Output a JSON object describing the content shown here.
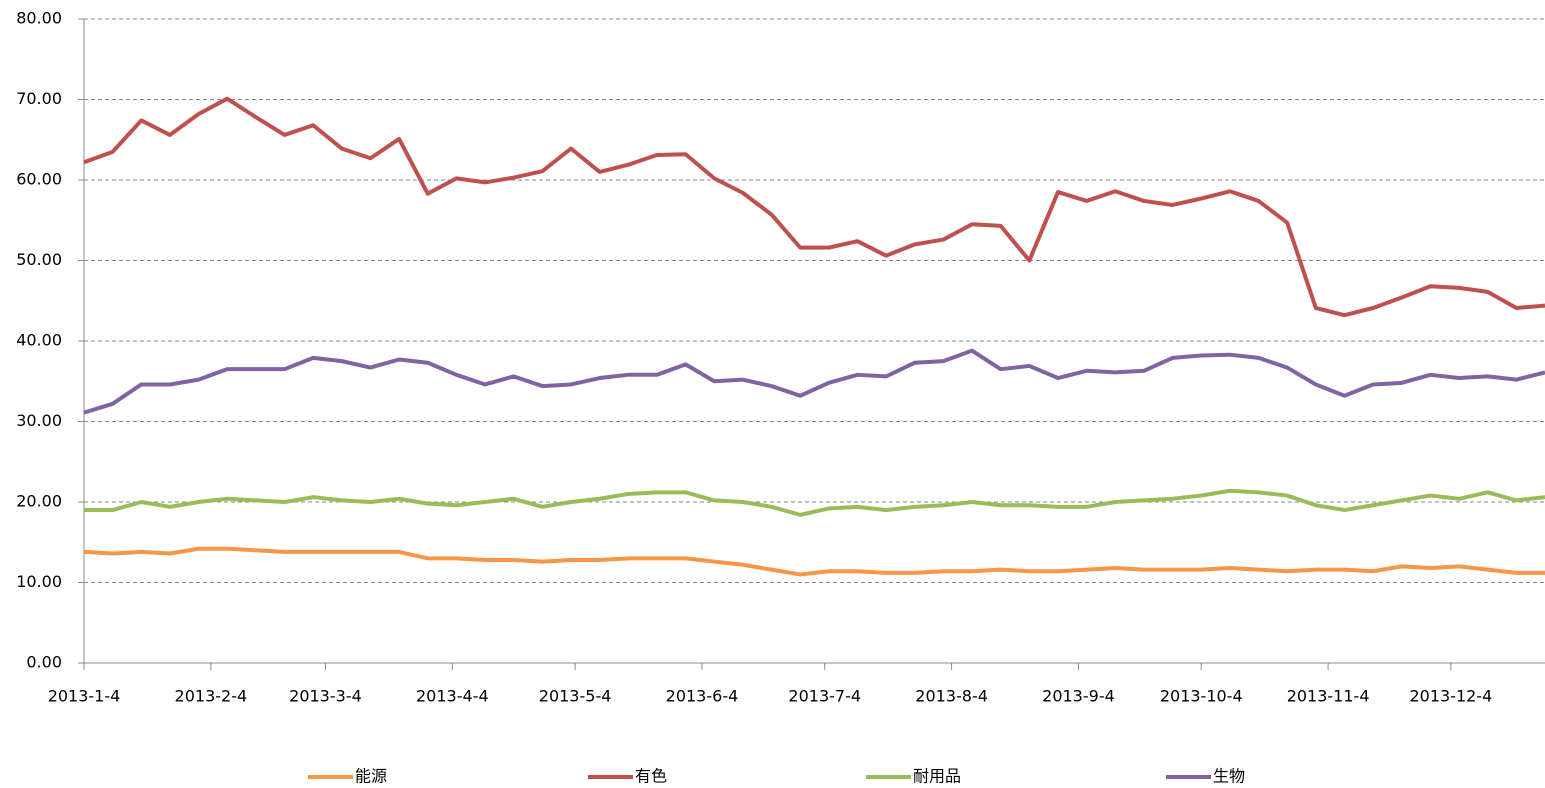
{
  "chart_data": {
    "type": "line",
    "x": [
      "2013-1-4",
      "2013-1-11",
      "2013-1-18",
      "2013-1-25",
      "2013-2-1",
      "2013-2-8",
      "2013-2-15",
      "2013-2-22",
      "2013-3-1",
      "2013-3-8",
      "2013-3-15",
      "2013-3-22",
      "2013-3-29",
      "2013-4-5",
      "2013-4-12",
      "2013-4-19",
      "2013-4-26",
      "2013-5-3",
      "2013-5-10",
      "2013-5-17",
      "2013-5-24",
      "2013-5-31",
      "2013-6-7",
      "2013-6-14",
      "2013-6-21",
      "2013-6-28",
      "2013-7-5",
      "2013-7-12",
      "2013-7-19",
      "2013-7-26",
      "2013-8-2",
      "2013-8-9",
      "2013-8-16",
      "2013-8-23",
      "2013-8-30",
      "2013-9-6",
      "2013-9-13",
      "2013-9-20",
      "2013-9-27",
      "2013-10-4",
      "2013-10-11",
      "2013-10-18",
      "2013-10-25",
      "2013-11-1",
      "2013-11-8",
      "2013-11-15",
      "2013-11-22",
      "2013-11-29",
      "2013-12-6",
      "2013-12-13",
      "2013-12-20",
      "2013-12-27"
    ],
    "xlim": [
      "2013-1-4",
      "2013-12-27"
    ],
    "xticks": [
      "2013-1-4",
      "2013-2-4",
      "2013-3-4",
      "2013-4-4",
      "2013-5-4",
      "2013-6-4",
      "2013-7-4",
      "2013-8-4",
      "2013-9-4",
      "2013-10-4",
      "2013-11-4",
      "2013-12-4"
    ],
    "ylim": [
      0,
      80
    ],
    "yticks": [
      {
        "value": 0,
        "label": "0.00"
      },
      {
        "value": 10,
        "label": "10.00"
      },
      {
        "value": 20,
        "label": "20.00"
      },
      {
        "value": 30,
        "label": "30.00"
      },
      {
        "value": 40,
        "label": "40.00"
      },
      {
        "value": 50,
        "label": "50.00"
      },
      {
        "value": 60,
        "label": "60.00"
      },
      {
        "value": 70,
        "label": "70.00"
      },
      {
        "value": 80,
        "label": "80.00"
      }
    ],
    "grid": true,
    "legend": "bottom",
    "series": [
      {
        "name": "能源",
        "color": "#f79646",
        "values": [
          13.8,
          13.6,
          13.8,
          13.6,
          14.2,
          14.2,
          14.0,
          13.8,
          13.8,
          13.8,
          13.8,
          13.8,
          13.0,
          13.0,
          12.8,
          12.8,
          12.6,
          12.8,
          12.8,
          13.0,
          13.0,
          13.0,
          12.6,
          12.2,
          11.6,
          11.0,
          11.4,
          11.4,
          11.2,
          11.2,
          11.4,
          11.4,
          11.6,
          11.4,
          11.4,
          11.6,
          11.8,
          11.6,
          11.6,
          11.6,
          11.8,
          11.6,
          11.4,
          11.6,
          11.6,
          11.4,
          12.0,
          11.8,
          12.0,
          11.6,
          11.2,
          11.2
        ]
      },
      {
        "name": "有色",
        "color": "#c0504d",
        "values": [
          62.2,
          63.5,
          67.4,
          65.6,
          68.2,
          70.1,
          67.8,
          65.6,
          66.8,
          63.9,
          62.7,
          65.1,
          58.3,
          60.2,
          59.7,
          60.3,
          61.1,
          63.9,
          61.0,
          61.9,
          63.1,
          63.2,
          60.2,
          58.4,
          55.7,
          51.6,
          51.6,
          52.4,
          50.6,
          52.0,
          52.6,
          54.5,
          54.3,
          50.0,
          58.5,
          57.4,
          58.6,
          57.4,
          56.9,
          57.7,
          58.6,
          57.4,
          54.7,
          44.1,
          43.2,
          44.1,
          45.4,
          46.8,
          46.6,
          46.1,
          44.1,
          44.4
        ]
      },
      {
        "name": "耐用品",
        "color": "#9bbb59",
        "values": [
          19.0,
          19.0,
          20.0,
          19.4,
          20.0,
          20.4,
          20.2,
          20.0,
          20.6,
          20.2,
          20.0,
          20.4,
          19.8,
          19.6,
          20.0,
          20.4,
          19.4,
          20.0,
          20.4,
          21.0,
          21.2,
          21.2,
          20.2,
          20.0,
          19.4,
          18.4,
          19.2,
          19.4,
          19.0,
          19.4,
          19.6,
          20.0,
          19.6,
          19.6,
          19.4,
          19.4,
          20.0,
          20.2,
          20.4,
          20.8,
          21.4,
          21.2,
          20.8,
          19.6,
          19.0,
          19.6,
          20.2,
          20.8,
          20.4,
          21.2,
          20.2,
          20.6
        ]
      },
      {
        "name": "生物",
        "color": "#8064a2",
        "values": [
          31.1,
          32.2,
          34.6,
          34.6,
          35.2,
          36.5,
          36.5,
          36.5,
          37.9,
          37.5,
          36.7,
          37.7,
          37.3,
          35.8,
          34.6,
          35.6,
          34.4,
          34.6,
          35.4,
          35.8,
          35.8,
          37.1,
          35.0,
          35.2,
          34.4,
          33.2,
          34.8,
          35.8,
          35.6,
          37.3,
          37.5,
          38.8,
          36.5,
          36.9,
          35.4,
          36.3,
          36.1,
          36.3,
          37.9,
          38.2,
          38.3,
          37.9,
          36.7,
          34.6,
          33.2,
          34.6,
          34.8,
          35.8,
          35.4,
          35.6,
          35.2,
          36.1
        ]
      }
    ]
  }
}
